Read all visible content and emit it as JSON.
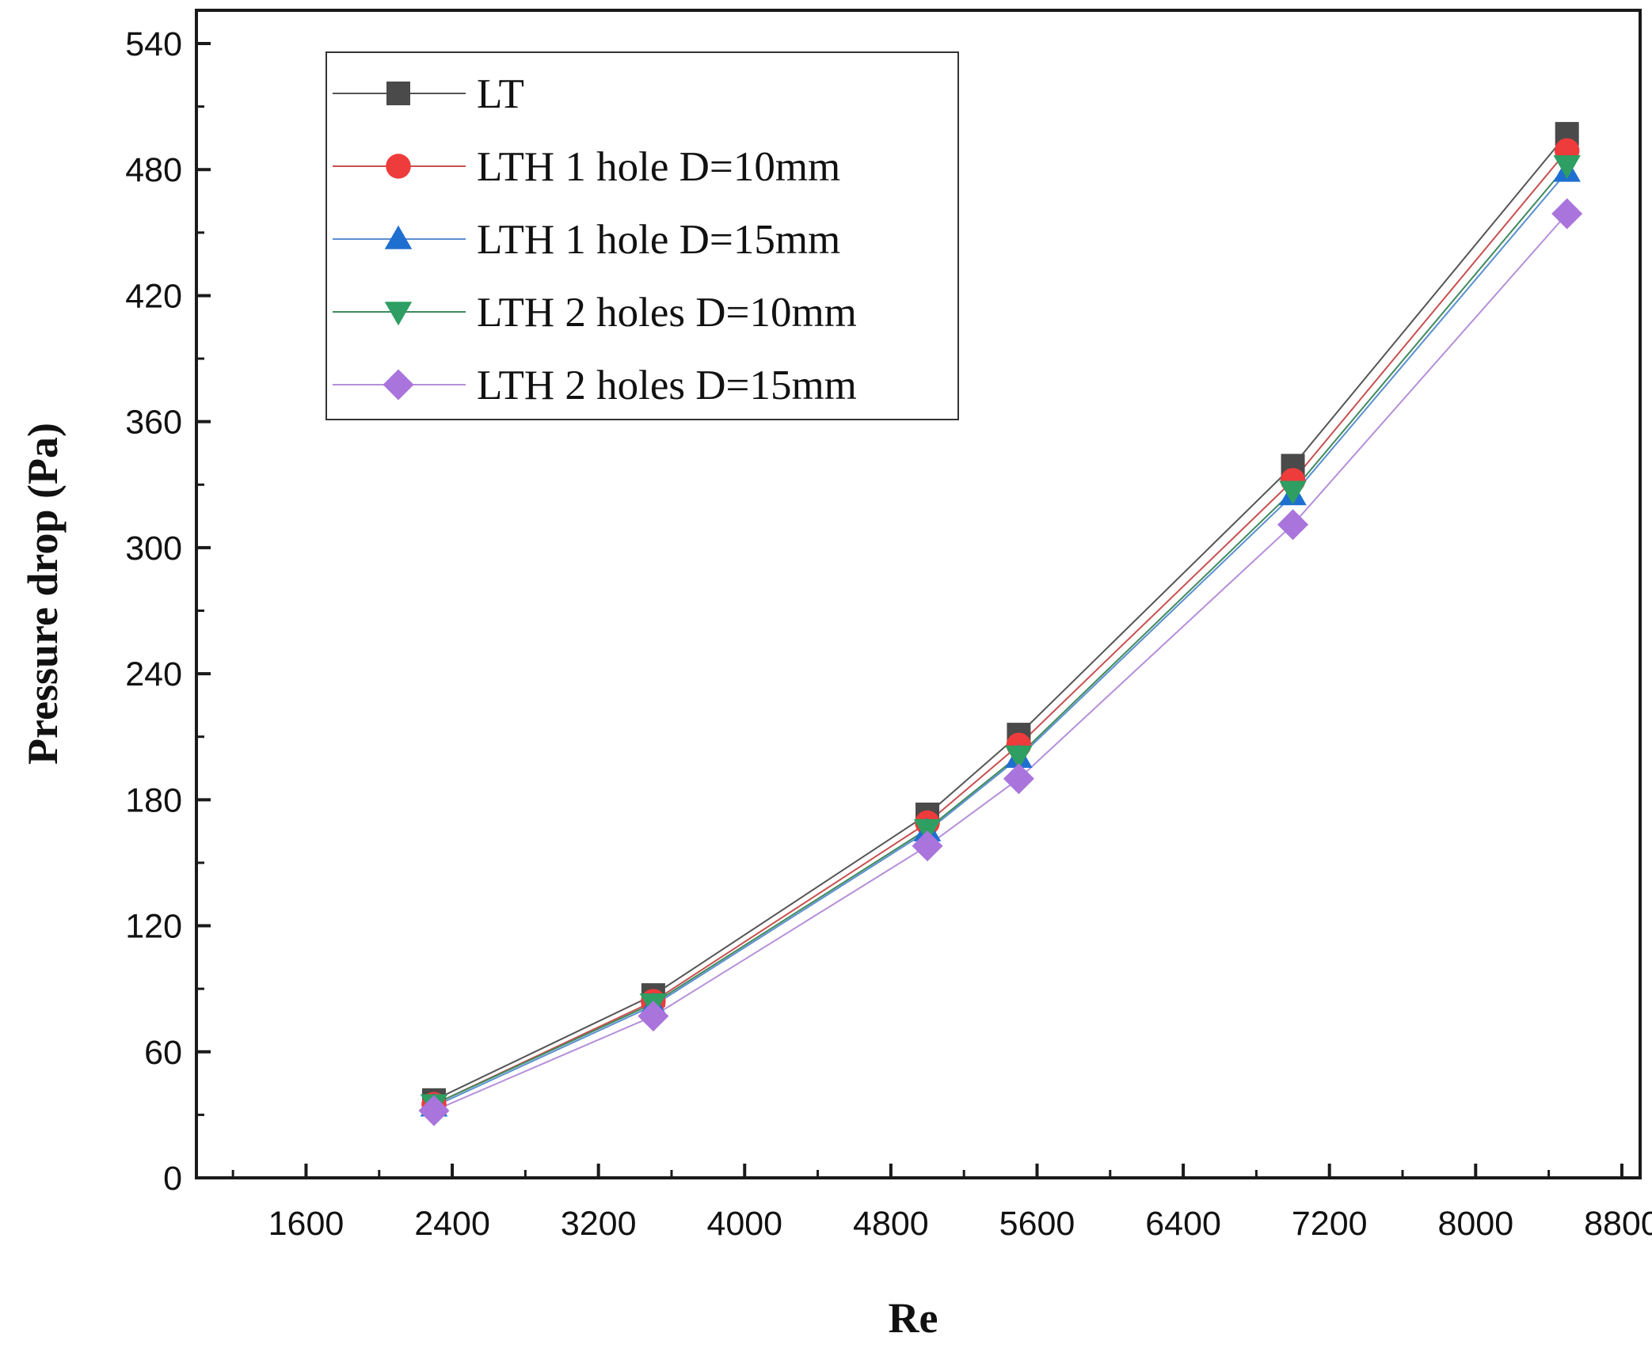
{
  "chart_data": {
    "type": "line",
    "title": "",
    "xlabel": "Re",
    "ylabel": "Pressure drop (Pa)",
    "xlim": [
      1000,
      8900
    ],
    "ylim": [
      0,
      540
    ],
    "xticks": [
      1600,
      2400,
      3200,
      4000,
      4800,
      5600,
      6400,
      7200,
      8000,
      8800
    ],
    "yticks": [
      0,
      60,
      120,
      180,
      240,
      300,
      360,
      420,
      480,
      540
    ],
    "x": [
      2300,
      3500,
      5000,
      5500,
      7000,
      8500
    ],
    "grid": false,
    "legend_position": "top-left",
    "series": [
      {
        "name": "LT",
        "marker": "square",
        "color": "#4a4a4a",
        "line_color": "#555555",
        "values": [
          37,
          87,
          173,
          211,
          339,
          497
        ]
      },
      {
        "name": "LTH 1 hole D=10mm",
        "marker": "circle",
        "color": "#ee3b3b",
        "line_color": "#c85050",
        "values": [
          35,
          84,
          169,
          206,
          332,
          489
        ]
      },
      {
        "name": "LTH 1 hole D=15mm",
        "marker": "triangle-up",
        "color": "#1f6fd1",
        "line_color": "#5b8fd0",
        "values": [
          34,
          82,
          165,
          200,
          325,
          479
        ]
      },
      {
        "name": "LTH 2 holes D=10mm",
        "marker": "triangle-down",
        "color": "#2e9e62",
        "line_color": "#3f8a5e",
        "values": [
          35,
          83,
          166,
          201,
          327,
          482
        ]
      },
      {
        "name": "LTH 2 holes D=15mm",
        "marker": "diamond",
        "color": "#a974dc",
        "line_color": "#b58fd8",
        "values": [
          32,
          77,
          158,
          190,
          311,
          459
        ]
      }
    ]
  }
}
